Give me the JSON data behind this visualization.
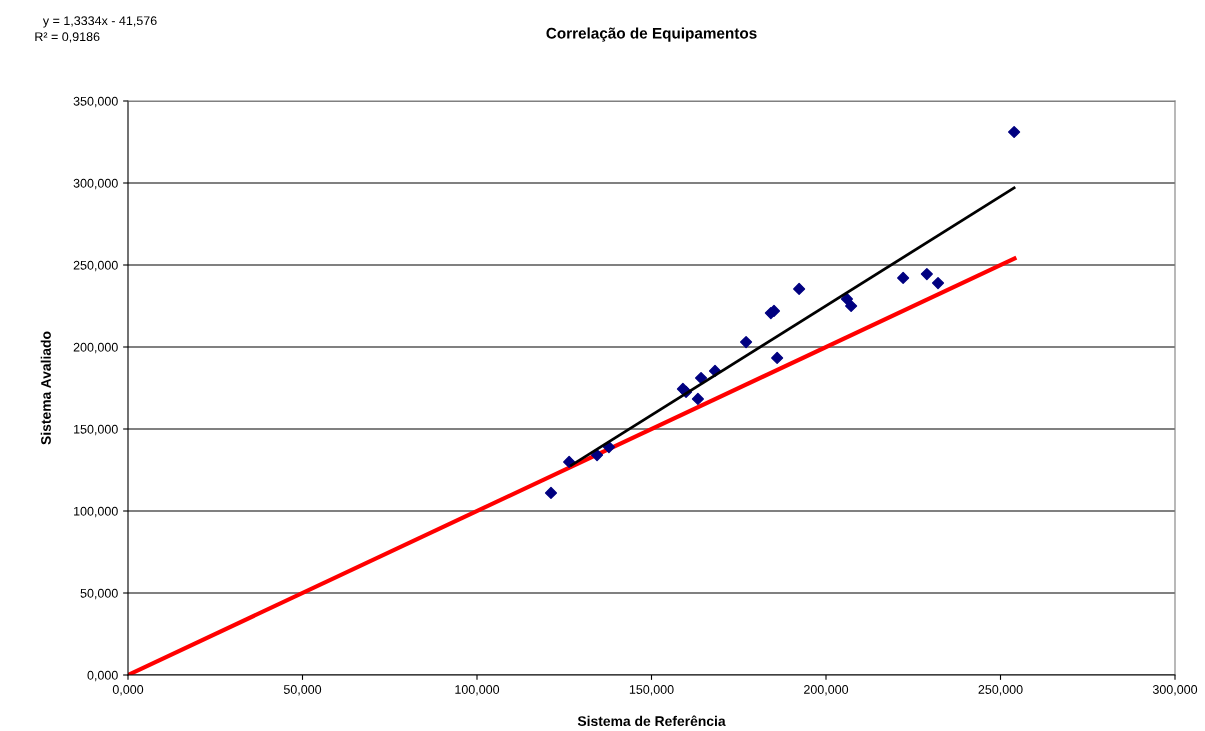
{
  "chart_data": {
    "type": "scatter",
    "title": "Correlação de Equipamentos",
    "xlabel": "Sistema de Referência",
    "ylabel": "Sistema Avaliado",
    "annotations": [
      "y = 1,3334x - 41,576",
      "R² = 0,9186"
    ],
    "xlim": [
      0,
      300
    ],
    "ylim": [
      0,
      350
    ],
    "xticks": [
      {
        "value": 0,
        "label": "0,000"
      },
      {
        "value": 50,
        "label": "50,000"
      },
      {
        "value": 100,
        "label": "100,000"
      },
      {
        "value": 150,
        "label": "150,000"
      },
      {
        "value": 200,
        "label": "200,000"
      },
      {
        "value": 250,
        "label": "250,000"
      },
      {
        "value": 300,
        "label": "300,000"
      }
    ],
    "yticks": [
      {
        "value": 0,
        "label": "0,000"
      },
      {
        "value": 50,
        "label": "50,000"
      },
      {
        "value": 100,
        "label": "100,000"
      },
      {
        "value": 150,
        "label": "150,000"
      },
      {
        "value": 200,
        "label": "200,000"
      },
      {
        "value": 250,
        "label": "250,000"
      },
      {
        "value": 300,
        "label": "300,000"
      },
      {
        "value": 350,
        "label": "350,000"
      }
    ],
    "grid": "y",
    "series": [
      {
        "type": "line",
        "color": "#ff0000",
        "x": [
          0,
          254
        ],
        "values": [
          0,
          254
        ],
        "marker": "none",
        "line_style": "solid"
      },
      {
        "color": "#000080",
        "marker": "diamond",
        "x": [
          121.2,
          126.4,
          134.4,
          137.8,
          159.0,
          159.9,
          163.3,
          164.2,
          168.2,
          177.1,
          184.2,
          185.1,
          186.0,
          192.3,
          206.0,
          207.2,
          222.1,
          228.9,
          232.1,
          253.9
        ],
        "values": [
          111.0,
          129.9,
          134.1,
          139.0,
          174.4,
          172.6,
          168.3,
          181.1,
          185.4,
          203.0,
          220.7,
          222.0,
          193.3,
          235.4,
          229.3,
          225.0,
          242.1,
          244.5,
          239.0,
          331.1
        ]
      },
      {
        "type": "line",
        "color": "#000000",
        "x": [
          127,
          253.9
        ],
        "values": [
          127.8,
          297.0
        ],
        "marker": "none",
        "line_style": "solid"
      }
    ]
  }
}
